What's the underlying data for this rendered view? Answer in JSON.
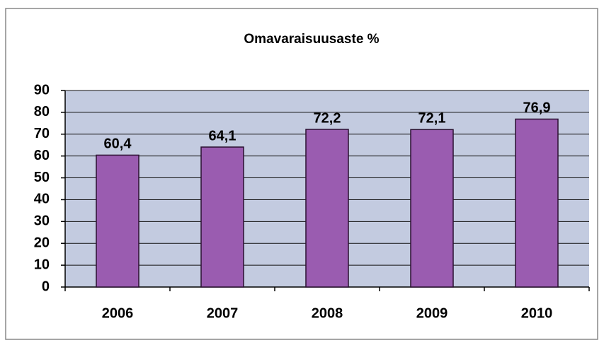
{
  "chart_data": {
    "type": "bar",
    "title": "Omavaraisuusaste %",
    "categories": [
      "2006",
      "2007",
      "2008",
      "2009",
      "2010"
    ],
    "values": [
      60.4,
      64.1,
      72.2,
      72.1,
      76.9
    ],
    "value_labels": [
      "60,4",
      "64,1",
      "72,2",
      "72,1",
      "76,9"
    ],
    "color": "#9a5cb0",
    "ylim": [
      0,
      90
    ],
    "yticks": [
      0,
      10,
      20,
      30,
      40,
      50,
      60,
      70,
      80,
      90
    ],
    "grid": true
  }
}
